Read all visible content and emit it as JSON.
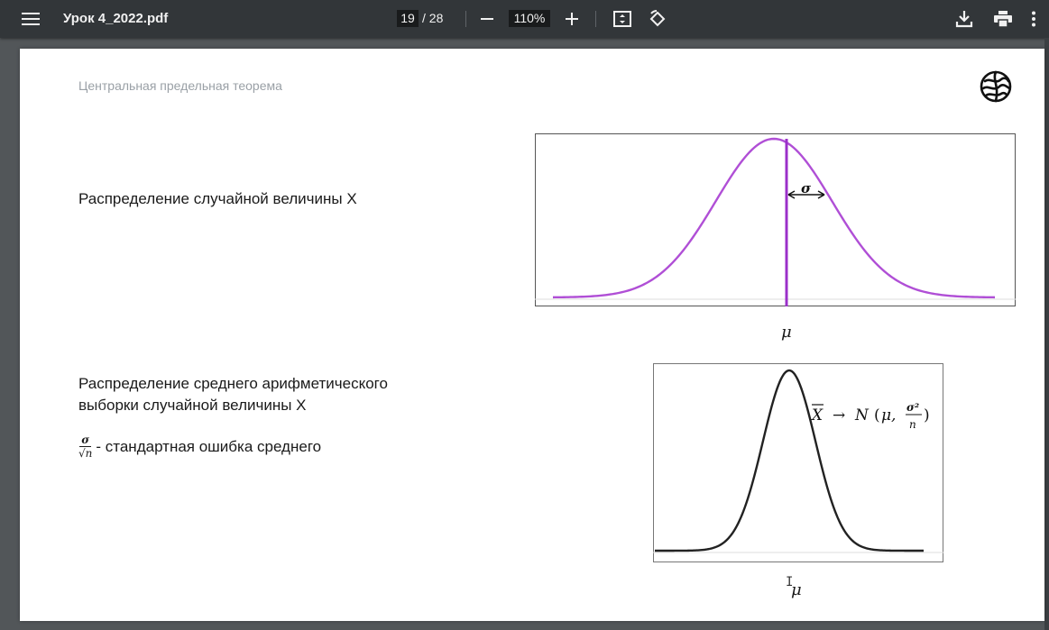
{
  "toolbar": {
    "title": "Урок 4_2022.pdf",
    "page_current": "19",
    "page_total": "/ 28",
    "zoom": "110%",
    "icons": [
      "menu-icon",
      "zoom-out-icon",
      "zoom-in-icon",
      "fit-page-icon",
      "rotate-icon",
      "download-icon",
      "print-icon",
      "more-icon"
    ]
  },
  "slide": {
    "header": "Центральная предельная теорема",
    "text_dist": "Распределение случайной величины X",
    "text_mean_line1": "Распределение среднего арифметического",
    "text_mean_line2": "выборки случайной величины X",
    "se_numerator": "σ",
    "se_denominator": "√n",
    "se_text": "- стандартная ошибка среднего"
  },
  "chart_data": [
    {
      "type": "line",
      "curve": "normal",
      "series": [
        {
          "mean": 0,
          "sd": 1,
          "color": "#b04fd6"
        }
      ],
      "annotations": {
        "sigma_label": "σ",
        "mean_label": "μ"
      },
      "mean_line_color": "#9b30c9"
    },
    {
      "type": "line",
      "curve": "normal",
      "series": [
        {
          "mean": 0,
          "sd": 0.45,
          "color": "#222222"
        }
      ],
      "annotations": {
        "formula": "X̄ → N (μ, σ²/n)",
        "mean_label": "μ"
      }
    }
  ],
  "colors": {
    "toolbar_bg": "#323639",
    "viewer_bg": "#525659",
    "curve1": "#b04fd6",
    "curve2": "#222222"
  }
}
